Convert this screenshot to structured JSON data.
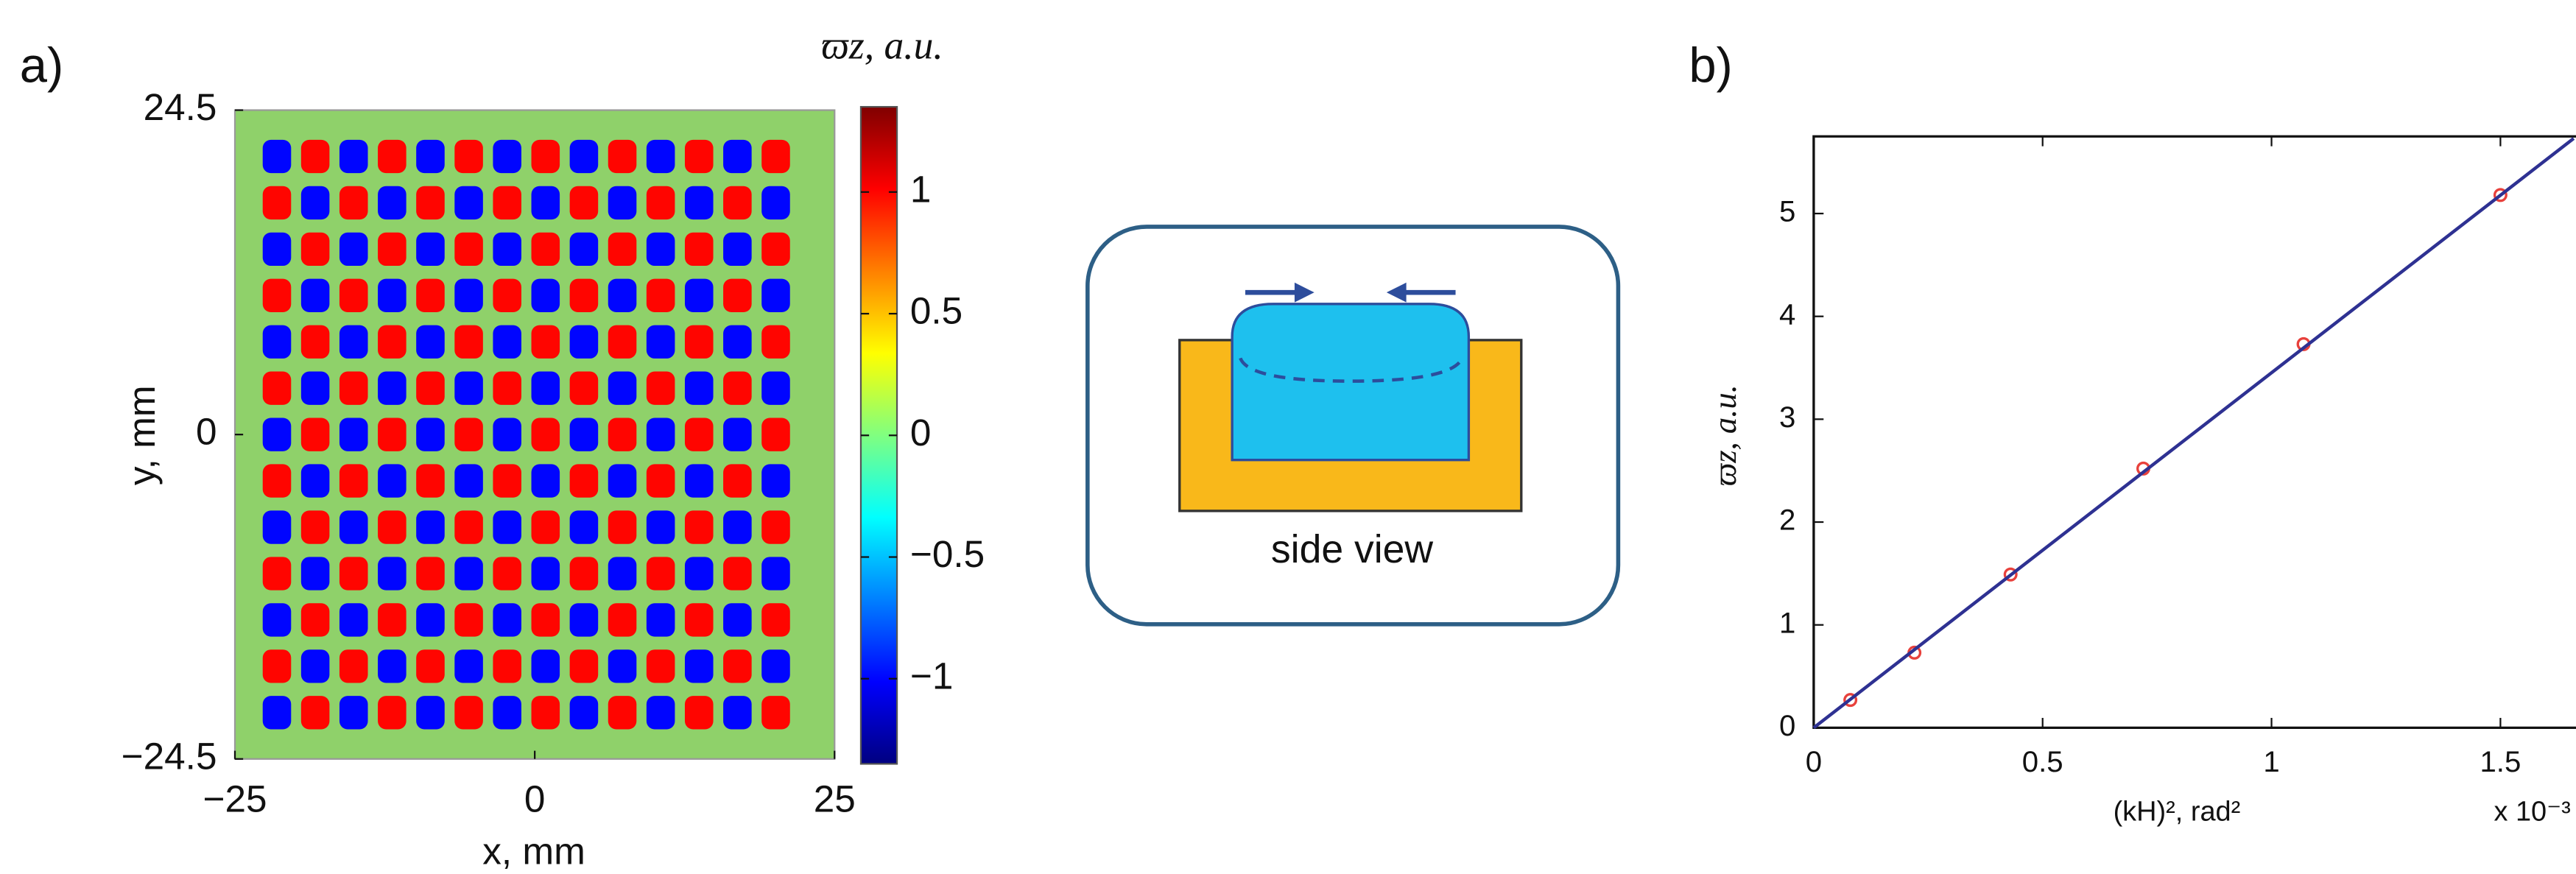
{
  "chart_data": [
    {
      "type": "heatmap",
      "panel": "a)",
      "colorbar_title": "ϖz, a.u.",
      "x_label": "x, mm",
      "y_label": "y, mm",
      "xlim": [
        -25,
        25
      ],
      "xticks": [
        {
          "value": -25,
          "label": "−25"
        },
        0,
        25
      ],
      "ylim": [
        -24.5,
        24.5
      ],
      "yticks": [
        {
          "value": -24.5,
          "label": "−24.5"
        },
        0,
        24.5
      ],
      "zlim": [
        -1.35,
        1.35
      ],
      "zticks": [
        {
          "value": -1,
          "label": "−1"
        },
        {
          "value": -0.5,
          "label": "−0.5"
        },
        0,
        0.5,
        1
      ],
      "colormap": "jet",
      "x": [
        -21.5,
        -18.3,
        -15.1,
        -11.9,
        -8.7,
        -5.5,
        -2.3,
        0.9,
        4.1,
        7.3,
        10.5,
        13.7,
        16.9,
        20.1
      ],
      "y": [
        21,
        17.5,
        14,
        10.5,
        7,
        3.5,
        0,
        -3.5,
        -7,
        -10.5,
        -14,
        -17.5,
        -21
      ],
      "z": [
        [
          -1,
          1,
          -1,
          1,
          -1,
          1,
          -1,
          1,
          -1,
          1,
          -1,
          1,
          -1,
          1
        ],
        [
          1,
          -1,
          1,
          -1,
          1,
          -1,
          1,
          -1,
          1,
          -1,
          1,
          -1,
          1,
          -1
        ],
        [
          -1,
          1,
          -1,
          1,
          -1,
          1,
          -1,
          1,
          -1,
          1,
          -1,
          1,
          -1,
          1
        ],
        [
          1,
          -1,
          1,
          -1,
          1,
          -1,
          1,
          -1,
          1,
          -1,
          1,
          -1,
          1,
          -1
        ],
        [
          -1,
          1,
          -1,
          1,
          -1,
          1,
          -1,
          1,
          -1,
          1,
          -1,
          1,
          -1,
          1
        ],
        [
          1,
          -1,
          1,
          -1,
          1,
          -1,
          1,
          -1,
          1,
          -1,
          1,
          -1,
          1,
          -1
        ],
        [
          -1,
          1,
          -1,
          1,
          -1,
          1,
          -1,
          1,
          -1,
          1,
          -1,
          1,
          -1,
          1
        ],
        [
          1,
          -1,
          1,
          -1,
          1,
          -1,
          1,
          -1,
          1,
          -1,
          1,
          -1,
          1,
          -1
        ],
        [
          -1,
          1,
          -1,
          1,
          -1,
          1,
          -1,
          1,
          -1,
          1,
          -1,
          1,
          -1,
          1
        ],
        [
          1,
          -1,
          1,
          -1,
          1,
          -1,
          1,
          -1,
          1,
          -1,
          1,
          -1,
          1,
          -1
        ],
        [
          -1,
          1,
          -1,
          1,
          -1,
          1,
          -1,
          1,
          -1,
          1,
          -1,
          1,
          -1,
          1
        ],
        [
          1,
          -1,
          1,
          -1,
          1,
          -1,
          1,
          -1,
          1,
          -1,
          1,
          -1,
          1,
          -1
        ],
        [
          -1,
          1,
          -1,
          1,
          -1,
          1,
          -1,
          1,
          -1,
          1,
          -1,
          1,
          -1,
          1
        ]
      ]
    },
    {
      "type": "scatter",
      "panel": "b)",
      "x_label": "(kH)², rad²",
      "x_multiplier": "x 10⁻³",
      "y_label": "ϖz, a.u.",
      "xlim": [
        0,
        1.66
      ],
      "xticks": [
        0,
        0.5,
        1,
        1.5
      ],
      "ylim": [
        0,
        5.75
      ],
      "yticks": [
        0,
        1,
        2,
        3,
        4,
        5
      ],
      "series": [
        {
          "mode": "markers",
          "color": "#e8413c",
          "x": [
            0.08,
            0.22,
            0.43,
            0.72,
            1.07,
            1.5
          ],
          "values": [
            0.27,
            0.73,
            1.49,
            2.52,
            3.73,
            5.18
          ]
        },
        {
          "mode": "line",
          "color": "#2e3192",
          "x": [
            0,
            1.66
          ],
          "values": [
            0,
            5.73
          ]
        }
      ]
    }
  ],
  "diagram": {
    "label": "side view"
  }
}
